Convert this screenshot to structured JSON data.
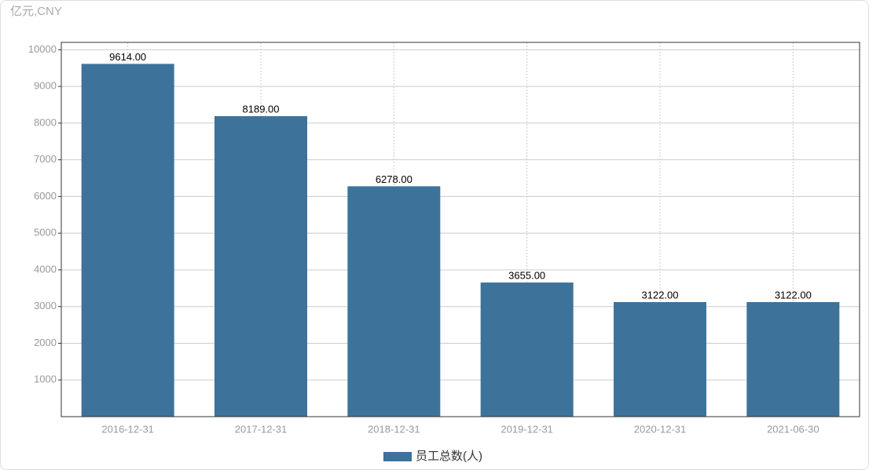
{
  "chart_data": {
    "type": "bar",
    "unit_label": "亿元,CNY",
    "categories": [
      "2016-12-31",
      "2017-12-31",
      "2018-12-31",
      "2019-12-31",
      "2020-12-31",
      "2021-06-30"
    ],
    "series": [
      {
        "name": "员工总数(人)",
        "color": "#3d729b",
        "values": [
          9614,
          8189,
          6278,
          3655,
          3122,
          3122
        ],
        "value_labels": [
          "9614.00",
          "8189.00",
          "6278.00",
          "3655.00",
          "3122.00",
          "3122.00"
        ]
      }
    ],
    "ylim": [
      0,
      10200
    ],
    "yticks": [
      1000,
      2000,
      3000,
      4000,
      5000,
      6000,
      7000,
      8000,
      9000,
      10000
    ],
    "grid": true,
    "legend": "bottom"
  }
}
